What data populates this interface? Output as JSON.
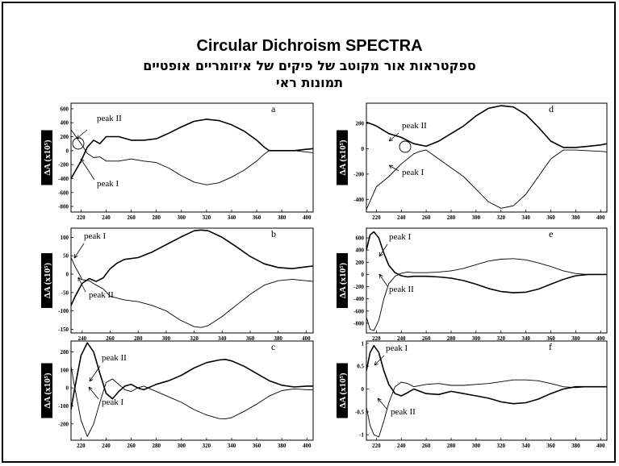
{
  "title": {
    "line1": "Circular Dichroism  SPECTRA",
    "line2": "ספקטראות אור מקוטב של פיקים של איזומריים אופטיים",
    "line3": "תמונות ראי"
  },
  "chart_data": [
    {
      "type": "line",
      "panel": "a",
      "y_label": "ΔA (x10⁵)",
      "xlim": [
        212,
        405
      ],
      "ylim": [
        -880,
        680
      ],
      "x_ticks": [
        220,
        240,
        260,
        280,
        300,
        320,
        340,
        360,
        380,
        400
      ],
      "y_ticks": [
        -800,
        -600,
        -400,
        -200,
        0,
        200,
        400,
        600
      ],
      "series": [
        {
          "name": "peak II",
          "x": [
            212,
            220,
            225,
            230,
            235,
            240,
            250,
            260,
            270,
            280,
            290,
            300,
            310,
            320,
            330,
            340,
            350,
            360,
            366,
            370,
            380,
            390,
            400,
            405
          ],
          "y": [
            -400,
            -150,
            50,
            150,
            100,
            200,
            200,
            150,
            150,
            170,
            250,
            340,
            420,
            450,
            430,
            370,
            280,
            150,
            50,
            0,
            0,
            0,
            20,
            30
          ]
        },
        {
          "name": "peak I",
          "x": [
            212,
            220,
            225,
            230,
            235,
            240,
            250,
            260,
            270,
            280,
            290,
            300,
            310,
            320,
            330,
            340,
            350,
            360,
            366,
            370,
            380,
            390,
            400,
            405
          ],
          "y": [
            300,
            100,
            -40,
            -100,
            -90,
            -150,
            -150,
            -120,
            -150,
            -170,
            -250,
            -360,
            -450,
            -490,
            -460,
            -380,
            -280,
            -150,
            -50,
            0,
            0,
            0,
            -20,
            -30
          ]
        }
      ],
      "annotations": [
        "peak II",
        "peak I"
      ]
    },
    {
      "type": "line",
      "panel": "b",
      "y_label": "ΔA (x10⁵)",
      "xlim": [
        232,
        405
      ],
      "ylim": [
        -160,
        125
      ],
      "x_ticks": [
        240,
        260,
        280,
        300,
        320,
        340,
        360,
        380,
        400
      ],
      "y_ticks": [
        -150,
        -100,
        -50,
        0,
        50,
        100
      ],
      "series": [
        {
          "name": "peak I",
          "x": [
            232,
            235,
            240,
            245,
            250,
            255,
            260,
            265,
            270,
            280,
            290,
            300,
            310,
            320,
            325,
            330,
            340,
            350,
            360,
            370,
            380,
            390,
            400,
            405
          ],
          "y": [
            -85,
            -60,
            -25,
            -12,
            -20,
            -10,
            15,
            30,
            40,
            45,
            60,
            80,
            100,
            118,
            120,
            118,
            100,
            75,
            48,
            28,
            18,
            15,
            20,
            22
          ]
        },
        {
          "name": "peak II",
          "x": [
            232,
            235,
            240,
            245,
            250,
            255,
            260,
            265,
            270,
            280,
            290,
            300,
            310,
            320,
            325,
            330,
            340,
            350,
            360,
            370,
            380,
            390,
            400,
            405
          ],
          "y": [
            45,
            20,
            -15,
            -18,
            -30,
            -40,
            -60,
            -65,
            -70,
            -75,
            -85,
            -100,
            -125,
            -143,
            -145,
            -140,
            -115,
            -85,
            -55,
            -30,
            -18,
            -14,
            -18,
            -20
          ]
        }
      ],
      "annotations": [
        "peak I",
        "peak II"
      ]
    },
    {
      "type": "line",
      "panel": "c",
      "y_label": "ΔA (x10⁵)",
      "xlim": [
        212,
        405
      ],
      "ylim": [
        -290,
        260
      ],
      "x_ticks": [
        220,
        240,
        260,
        280,
        300,
        320,
        340,
        360,
        380,
        400
      ],
      "y_ticks": [
        -200,
        -100,
        0,
        100,
        200
      ],
      "series": [
        {
          "name": "peak II",
          "x": [
            212,
            215,
            220,
            225,
            230,
            235,
            240,
            245,
            250,
            255,
            260,
            265,
            270,
            280,
            290,
            300,
            310,
            320,
            330,
            335,
            340,
            350,
            360,
            370,
            380,
            390,
            400,
            405
          ],
          "y": [
            -120,
            0,
            180,
            250,
            200,
            80,
            -30,
            -60,
            -20,
            10,
            20,
            0,
            -10,
            20,
            40,
            70,
            110,
            140,
            155,
            158,
            150,
            120,
            80,
            40,
            15,
            5,
            10,
            10
          ]
        },
        {
          "name": "peak I",
          "x": [
            212,
            215,
            220,
            225,
            230,
            235,
            240,
            245,
            250,
            255,
            260,
            265,
            270,
            280,
            290,
            300,
            310,
            320,
            330,
            335,
            340,
            350,
            360,
            370,
            380,
            390,
            400,
            405
          ],
          "y": [
            120,
            0,
            -180,
            -270,
            -200,
            -80,
            30,
            50,
            20,
            -10,
            -20,
            0,
            10,
            -20,
            -50,
            -80,
            -120,
            -150,
            -170,
            -172,
            -165,
            -130,
            -90,
            -45,
            -15,
            -5,
            -10,
            -10
          ]
        }
      ],
      "annotations": [
        "peak II",
        "peak I"
      ]
    },
    {
      "type": "line",
      "panel": "d",
      "y_label": "ΔA (x10⁵)",
      "xlim": [
        212,
        405
      ],
      "ylim": [
        -500,
        360
      ],
      "x_ticks": [
        220,
        240,
        260,
        280,
        300,
        320,
        340,
        360,
        380,
        400
      ],
      "y_ticks": [
        -400,
        -200,
        0,
        200
      ],
      "series": [
        {
          "name": "peak II",
          "x": [
            212,
            220,
            230,
            240,
            250,
            255,
            260,
            270,
            280,
            290,
            300,
            310,
            320,
            330,
            340,
            350,
            360,
            370,
            380,
            390,
            400,
            405
          ],
          "y": [
            210,
            180,
            120,
            90,
            40,
            30,
            20,
            60,
            120,
            180,
            260,
            320,
            340,
            330,
            270,
            170,
            60,
            10,
            10,
            20,
            30,
            40
          ]
        },
        {
          "name": "peak I",
          "x": [
            212,
            220,
            230,
            240,
            250,
            255,
            260,
            270,
            280,
            290,
            300,
            310,
            320,
            330,
            340,
            350,
            360,
            370,
            380,
            390,
            400,
            405
          ],
          "y": [
            -480,
            -300,
            -220,
            -120,
            -40,
            -20,
            -10,
            -80,
            -150,
            -220,
            -320,
            -420,
            -470,
            -450,
            -360,
            -220,
            -80,
            -10,
            -10,
            -15,
            -20,
            -25
          ]
        }
      ],
      "annotations": [
        "peak II",
        "peak I"
      ]
    },
    {
      "type": "line",
      "panel": "e",
      "y_label": "ΔA (x10⁵)",
      "xlim": [
        212,
        405
      ],
      "ylim": [
        -960,
        760
      ],
      "x_ticks": [
        220,
        240,
        260,
        280,
        300,
        320,
        340,
        360,
        380,
        400
      ],
      "y_ticks": [
        -800,
        -600,
        -400,
        -200,
        0,
        200,
        400,
        600
      ],
      "series": [
        {
          "name": "peak I",
          "x": [
            212,
            215,
            218,
            222,
            226,
            230,
            235,
            240,
            245,
            250,
            260,
            270,
            280,
            290,
            300,
            310,
            320,
            330,
            340,
            350,
            360,
            370,
            380,
            390,
            400,
            405
          ],
          "y": [
            400,
            650,
            700,
            600,
            350,
            150,
            30,
            -20,
            -40,
            -30,
            -30,
            -40,
            -60,
            -100,
            -160,
            -230,
            -280,
            -300,
            -290,
            -240,
            -160,
            -80,
            -20,
            0,
            0,
            0
          ]
        },
        {
          "name": "peak II",
          "x": [
            212,
            215,
            218,
            222,
            226,
            230,
            235,
            240,
            245,
            250,
            260,
            270,
            280,
            290,
            300,
            310,
            320,
            330,
            340,
            350,
            360,
            370,
            380,
            390,
            400,
            405
          ],
          "y": [
            -700,
            -900,
            -920,
            -750,
            -400,
            -150,
            -30,
            20,
            40,
            30,
            30,
            40,
            60,
            100,
            160,
            220,
            250,
            260,
            240,
            190,
            130,
            60,
            15,
            0,
            0,
            0
          ]
        }
      ],
      "annotations": [
        "peak I",
        "peak II"
      ]
    },
    {
      "type": "line",
      "panel": "f",
      "y_label": "ΔA (x10⁵)",
      "xlim": [
        212,
        405
      ],
      "ylim": [
        -1.12,
        1.05
      ],
      "x_ticks": [
        220,
        240,
        260,
        280,
        300,
        320,
        340,
        360,
        380,
        400
      ],
      "y_ticks": [
        -1.0,
        -0.5,
        0.0,
        0.5,
        1.0
      ],
      "series": [
        {
          "name": "peak I",
          "x": [
            212,
            215,
            218,
            222,
            226,
            230,
            235,
            240,
            245,
            250,
            260,
            270,
            280,
            290,
            300,
            310,
            320,
            330,
            340,
            350,
            360,
            370,
            380,
            390,
            400,
            405
          ],
          "y": [
            0.4,
            0.8,
            0.95,
            0.8,
            0.4,
            0.1,
            -0.1,
            -0.15,
            -0.08,
            0.0,
            -0.1,
            -0.12,
            -0.05,
            -0.1,
            -0.15,
            -0.2,
            -0.28,
            -0.32,
            -0.3,
            -0.22,
            -0.1,
            0.0,
            0.05,
            0.05,
            0.05,
            0.05
          ]
        },
        {
          "name": "peak II",
          "x": [
            212,
            215,
            218,
            222,
            226,
            230,
            235,
            240,
            245,
            250,
            260,
            270,
            280,
            290,
            300,
            310,
            320,
            330,
            340,
            350,
            360,
            370,
            380,
            390,
            400,
            405
          ],
          "y": [
            -0.4,
            -0.8,
            -1.0,
            -1.05,
            -0.7,
            -0.3,
            0.05,
            0.15,
            0.12,
            0.05,
            0.1,
            0.12,
            0.08,
            0.08,
            0.1,
            0.12,
            0.16,
            0.2,
            0.2,
            0.18,
            0.12,
            0.05,
            0.03,
            0.05,
            0.05,
            0.05
          ]
        }
      ],
      "annotations": [
        "peak I",
        "peak II"
      ]
    }
  ]
}
